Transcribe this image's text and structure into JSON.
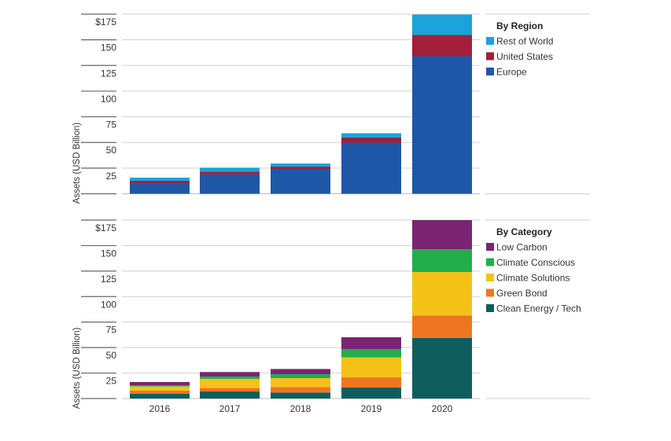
{
  "chart_data": [
    {
      "type": "bar",
      "stacked": true,
      "title": "By Region",
      "ylabel": "Assets (USD Billion)",
      "xlabel": "",
      "categories": [
        "2016",
        "2017",
        "2018",
        "2019",
        "2020"
      ],
      "ylim": [
        0,
        175
      ],
      "yticks": [
        25,
        50,
        75,
        100,
        125,
        150,
        175
      ],
      "ytick_labels": [
        "25",
        "50",
        "75",
        "100",
        "125",
        "150",
        "$175"
      ],
      "show_xtick_labels": false,
      "grid": true,
      "legend_position": "right",
      "legend_title": "By Region",
      "series": [
        {
          "name": "Europe",
          "color": "#1f57a8",
          "values": [
            10.3,
            18.8,
            23.4,
            49.8,
            134.0
          ]
        },
        {
          "name": "United States",
          "color": "#a31f3a",
          "values": [
            2.3,
            2.8,
            3.0,
            5.2,
            20.7
          ]
        },
        {
          "name": "Rest of World",
          "color": "#1aa3dc",
          "values": [
            3.1,
            3.8,
            3.1,
            4.0,
            19.9
          ]
        }
      ],
      "legend_order": [
        "Rest of World",
        "United States",
        "Europe"
      ]
    },
    {
      "type": "bar",
      "stacked": true,
      "title": "By Category",
      "ylabel": "Assets (USD Billion)",
      "xlabel": "",
      "categories": [
        "2016",
        "2017",
        "2018",
        "2019",
        "2020"
      ],
      "ylim": [
        0,
        175
      ],
      "yticks": [
        25,
        50,
        75,
        100,
        125,
        150,
        175
      ],
      "ytick_labels": [
        "25",
        "50",
        "75",
        "100",
        "125",
        "150",
        "$175"
      ],
      "show_xtick_labels": true,
      "grid": true,
      "legend_position": "right",
      "legend_title": "By Category",
      "series": [
        {
          "name": "Clean Energy / Tech",
          "color": "#0f5e5e",
          "values": [
            4.6,
            6.9,
            5.9,
            10.8,
            59.4
          ]
        },
        {
          "name": "Green Bond",
          "color": "#ee7623",
          "values": [
            3.3,
            3.4,
            5.4,
            10.0,
            22.1
          ]
        },
        {
          "name": "Climate Solutions",
          "color": "#f5c217",
          "values": [
            3.9,
            9.0,
            8.7,
            19.5,
            42.6
          ]
        },
        {
          "name": "Climate Conscious",
          "color": "#22ae4a",
          "values": [
            1.1,
            2.3,
            3.9,
            8.3,
            22.2
          ]
        },
        {
          "name": "Low Carbon",
          "color": "#7b2472",
          "values": [
            3.3,
            4.4,
            5.1,
            11.5,
            28.7
          ]
        }
      ],
      "legend_order": [
        "Low Carbon",
        "Climate Conscious",
        "Climate Solutions",
        "Green Bond",
        "Clean Energy / Tech"
      ]
    }
  ]
}
